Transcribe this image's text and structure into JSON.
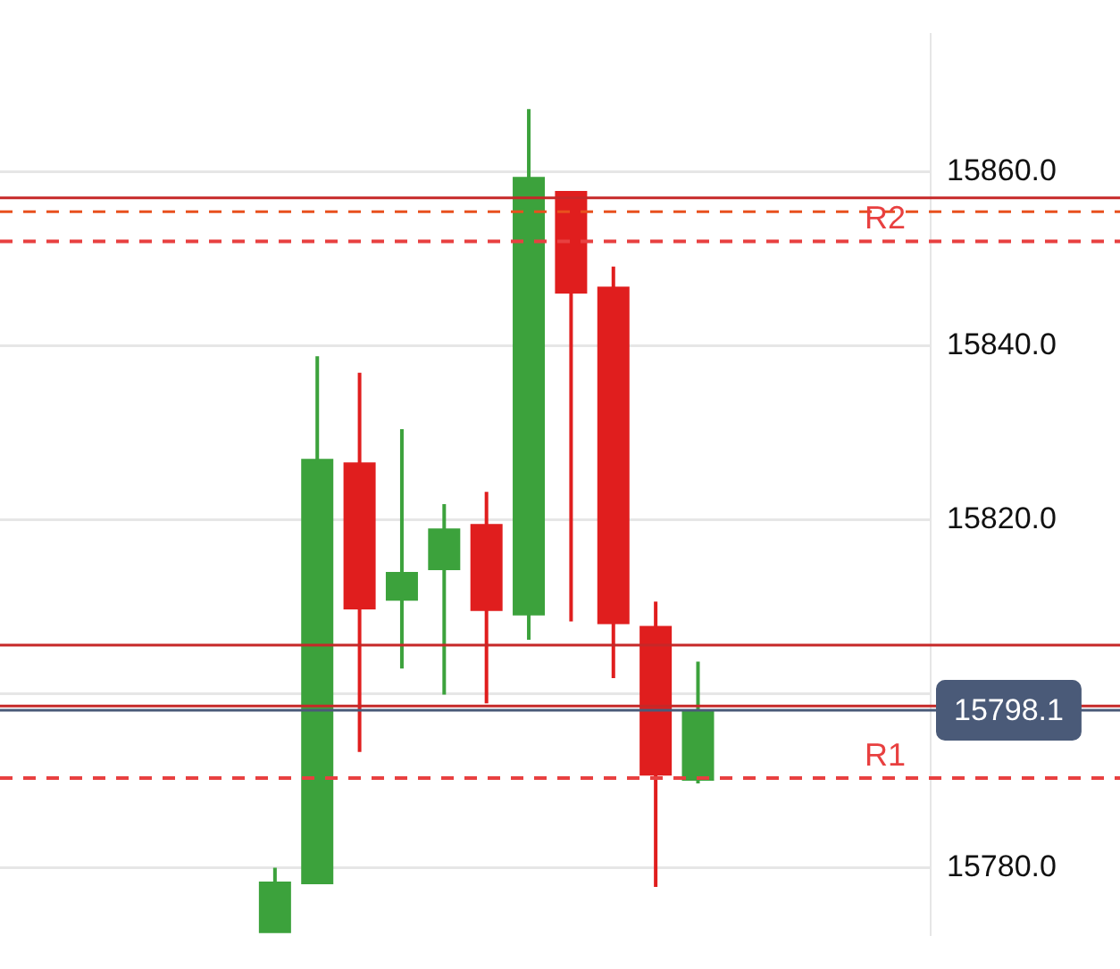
{
  "chart_data": {
    "type": "candlestick",
    "categories": [
      null,
      null,
      null,
      null,
      null,
      null,
      null,
      null,
      null,
      null,
      null,
      null,
      null,
      null,
      null,
      null,
      null,
      null,
      null,
      null,
      null,
      null
    ],
    "ohlc": [
      null,
      null,
      null,
      null,
      null,
      null,
      [
        15772.5,
        15780.0,
        15772.5,
        15778.4
      ],
      [
        15778.1,
        15838.8,
        15778.1,
        15827.0
      ],
      [
        15826.6,
        15836.9,
        15793.3,
        15809.7
      ],
      [
        15810.7,
        15830.4,
        15802.9,
        15814.0
      ],
      [
        15814.2,
        15821.8,
        15799.9,
        15819.0
      ],
      [
        15819.5,
        15823.2,
        15798.9,
        15809.5
      ],
      [
        15809.0,
        15867.2,
        15806.2,
        15859.4
      ],
      [
        15857.8,
        15857.8,
        15808.3,
        15846.0
      ],
      [
        15846.8,
        15849.1,
        15801.8,
        15808.0
      ],
      [
        15807.8,
        15810.6,
        15777.8,
        15790.6
      ],
      [
        15790.0,
        15803.7,
        15789.7,
        15798.1
      ],
      null,
      null,
      null,
      null,
      null
    ],
    "colors": [
      null,
      null,
      null,
      null,
      null,
      null,
      "#3ca23c",
      "#3ca23c",
      "#e01e1e",
      "#3ca23c",
      "#3ca23c",
      "#e01e1e",
      "#3ca23c",
      "#e01e1e",
      "#e01e1e",
      "#e01e1e",
      "#3ca23c",
      null,
      null,
      null,
      null,
      null
    ],
    "ylim": [
      15772.3,
      15875.8
    ],
    "yticks": [
      {
        "value": 15780,
        "label": "15780.0"
      },
      {
        "value": 15800,
        "label": null
      },
      {
        "value": 15820,
        "label": "15820.0"
      },
      {
        "value": 15840,
        "label": "15840.0"
      },
      {
        "value": 15860,
        "label": "15860.0"
      }
    ],
    "tick_labels": "y",
    "grid": "y",
    "ref_lines": [
      {
        "axis": "y",
        "value": 15857.0,
        "color": "#c62828",
        "line_style": "solid"
      },
      {
        "axis": "y",
        "value": 15855.4,
        "color": "#e8501e",
        "line_style": "dashed"
      },
      {
        "axis": "y",
        "value": 15852.0,
        "label": "R2",
        "color": "#e84040",
        "line_style": "dashed"
      },
      {
        "axis": "y",
        "value": 15805.6,
        "color": "#c62828",
        "line_style": "solid"
      },
      {
        "axis": "y",
        "value": 15798.1,
        "label": "15798.1",
        "color": "#4a5a78",
        "line_style": "solid"
      },
      {
        "axis": "y",
        "value": 15798.6,
        "color": "#c62828",
        "line_style": "solid"
      },
      {
        "axis": "y",
        "value": 15790.3,
        "label": "R1",
        "color": "#e84040",
        "line_style": "dashed"
      }
    ]
  }
}
